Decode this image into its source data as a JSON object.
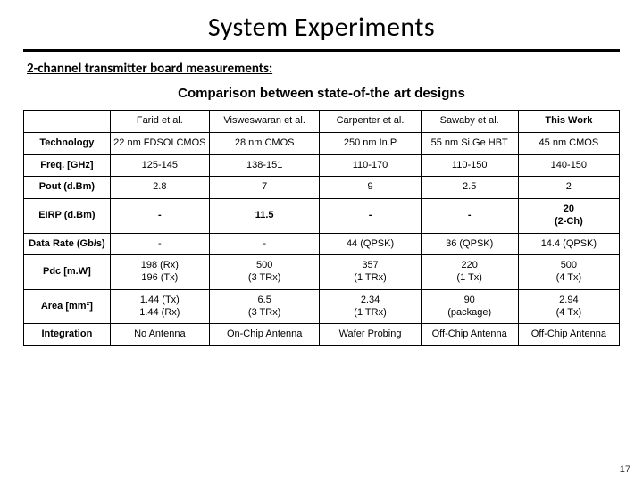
{
  "title": "System Experiments",
  "subheading": "2-channel transmitter board measurements:",
  "caption": "Comparison between state-of-the art designs",
  "page_number": "17",
  "table": {
    "columns": [
      "",
      "Farid et al.",
      "Visweswaran et al.",
      "Carpenter et al.",
      "Sawaby et al.",
      "This Work"
    ],
    "rows": [
      {
        "label": "Technology",
        "cells": [
          "22 nm FDSOI CMOS",
          "28 nm CMOS",
          "250 nm In.P",
          "55 nm Si.Ge HBT",
          "45 nm CMOS"
        ]
      },
      {
        "label": "Freq. [GHz]",
        "cells": [
          "125-145",
          "138-151",
          "110-170",
          "110-150",
          "140-150"
        ]
      },
      {
        "label": "Pout (d.Bm)",
        "cells": [
          "2.8",
          "7",
          "9",
          "2.5",
          "2"
        ]
      },
      {
        "label": "EIRP (d.Bm)",
        "cells": [
          "-",
          "11.5",
          "-",
          "-",
          "20\n(2-Ch)"
        ],
        "bold": true
      },
      {
        "label": "Data Rate (Gb/s)",
        "cells": [
          "-",
          "-",
          "44 (QPSK)",
          "36 (QPSK)",
          "14.4 (QPSK)"
        ]
      },
      {
        "label": "Pdc [m.W]",
        "cells": [
          "198 (Rx)\n196 (Tx)",
          "500\n(3 TRx)",
          "357\n(1 TRx)",
          "220\n(1 Tx)",
          "500\n(4 Tx)"
        ]
      },
      {
        "label": "Area [mm²]",
        "cells": [
          "1.44 (Tx)\n1.44 (Rx)",
          "6.5\n(3 TRx)",
          "2.34\n(1 TRx)",
          "90\n(package)",
          "2.94\n(4 Tx)"
        ]
      },
      {
        "label": "Integration",
        "cells": [
          "No Antenna",
          "On-Chip Antenna",
          "Wafer Probing",
          "Off-Chip Antenna",
          "Off-Chip Antenna"
        ]
      }
    ]
  }
}
